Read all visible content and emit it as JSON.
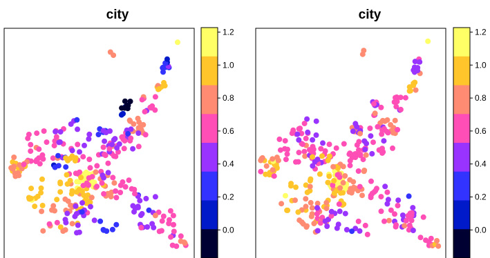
{
  "chart_data": [
    {
      "type": "scatter",
      "title": "city",
      "colorbar": {
        "ticks": [
          "0.0",
          "0.2",
          "0.4",
          "0.6",
          "0.8",
          "1.0",
          "1.2"
        ],
        "colors": [
          "#000033",
          "#0019c9",
          "#3333ff",
          "#9933ff",
          "#ff4fb6",
          "#ff8c72",
          "#ffc52b",
          "#ffff66"
        ]
      }
    },
    {
      "type": "scatter",
      "title": "city",
      "colorbar": {
        "ticks": [
          "0.0",
          "0.2",
          "0.4",
          "0.6",
          "0.8",
          "1.0",
          "1.2"
        ],
        "colors": [
          "#000033",
          "#0019c9",
          "#3333ff",
          "#9933ff",
          "#ff4fb6",
          "#ff8c72",
          "#ffc52b",
          "#ffff66"
        ]
      }
    }
  ]
}
